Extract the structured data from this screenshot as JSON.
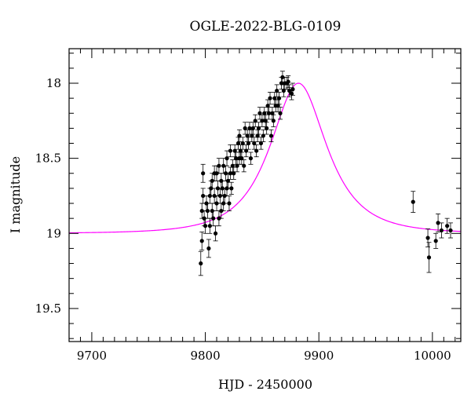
{
  "chart_data": {
    "type": "scatter",
    "title": "OGLE-2022-BLG-0109",
    "xlabel": "HJD - 2450000",
    "ylabel": "I magnitude",
    "xlim": [
      9680,
      10025
    ],
    "ylim": [
      19.72,
      17.77
    ],
    "y_inverted": true,
    "grid": false,
    "x_ticks": [
      9700,
      9800,
      9900,
      10000
    ],
    "y_ticks": [
      18,
      18.5,
      19,
      19.5
    ],
    "x_tick_labels": [
      "9700",
      "9800",
      "9900",
      "10000"
    ],
    "y_tick_labels": [
      "18",
      "18.5",
      "19",
      "19.5"
    ],
    "colors": {
      "data": "#000000",
      "model": "#ff00ff",
      "frame": "#000000"
    },
    "series": [
      {
        "kind": "points_with_errorbars",
        "x": [
          9796,
          9797,
          9797,
          9798,
          9798,
          9799,
          9800,
          9801,
          9802,
          9803,
          9804,
          9804,
          9805,
          9806,
          9806,
          9807,
          9808,
          9808,
          9809,
          9810,
          9810,
          9811,
          9812,
          9812,
          9813,
          9814,
          9814,
          9815,
          9816,
          9816,
          9817,
          9818,
          9819,
          9819,
          9820,
          9821,
          9822,
          9822,
          9823,
          9824,
          9825,
          9826,
          9827,
          9828,
          9829,
          9830,
          9830,
          9831,
          9832,
          9833,
          9834,
          9835,
          9836,
          9837,
          9838,
          9839,
          9840,
          9841,
          9842,
          9843,
          9844,
          9845,
          9846,
          9847,
          9848,
          9849,
          9850,
          9851,
          9852,
          9853,
          9854,
          9855,
          9856,
          9857,
          9858,
          9859,
          9860,
          9861,
          9862,
          9863,
          9864,
          9865,
          9866,
          9867,
          9868,
          9869,
          9870,
          9872,
          9873,
          9874,
          9876,
          9877,
          9983,
          9996,
          9997,
          10003,
          10005,
          10008,
          10013,
          10016
        ],
        "y": [
          19.2,
          19.05,
          18.85,
          18.75,
          18.6,
          18.9,
          18.95,
          18.8,
          18.85,
          19.1,
          18.75,
          18.95,
          18.7,
          18.85,
          18.65,
          18.9,
          18.6,
          18.75,
          19.0,
          18.8,
          18.6,
          18.7,
          18.9,
          18.55,
          18.75,
          18.65,
          18.85,
          18.7,
          18.55,
          18.8,
          18.75,
          18.6,
          18.7,
          18.5,
          18.65,
          18.8,
          18.6,
          18.45,
          18.7,
          18.55,
          18.6,
          18.45,
          18.5,
          18.55,
          18.4,
          18.5,
          18.35,
          18.45,
          18.5,
          18.4,
          18.55,
          18.3,
          18.45,
          18.35,
          18.4,
          18.3,
          18.5,
          18.35,
          18.3,
          18.4,
          18.25,
          18.45,
          18.35,
          18.3,
          18.2,
          18.4,
          18.25,
          18.35,
          18.2,
          18.25,
          18.3,
          18.15,
          18.2,
          18.1,
          18.35,
          18.2,
          18.25,
          18.1,
          18.15,
          18.05,
          18.15,
          18.1,
          18.2,
          18.0,
          17.96,
          18.05,
          18.0,
          18.0,
          17.99,
          18.05,
          18.07,
          18.04,
          18.79,
          19.03,
          19.16,
          19.05,
          18.93,
          18.98,
          18.95,
          18.98
        ],
        "yerr": [
          0.08,
          0.06,
          0.05,
          0.05,
          0.06,
          0.05,
          0.05,
          0.05,
          0.05,
          0.06,
          0.05,
          0.05,
          0.05,
          0.05,
          0.05,
          0.05,
          0.05,
          0.05,
          0.05,
          0.05,
          0.05,
          0.05,
          0.05,
          0.05,
          0.05,
          0.05,
          0.05,
          0.05,
          0.05,
          0.05,
          0.05,
          0.05,
          0.05,
          0.05,
          0.05,
          0.05,
          0.04,
          0.04,
          0.04,
          0.04,
          0.04,
          0.04,
          0.04,
          0.04,
          0.04,
          0.04,
          0.04,
          0.04,
          0.04,
          0.04,
          0.04,
          0.04,
          0.04,
          0.04,
          0.04,
          0.04,
          0.04,
          0.04,
          0.04,
          0.04,
          0.04,
          0.04,
          0.04,
          0.04,
          0.04,
          0.04,
          0.04,
          0.04,
          0.04,
          0.04,
          0.04,
          0.04,
          0.04,
          0.04,
          0.04,
          0.04,
          0.04,
          0.04,
          0.04,
          0.04,
          0.04,
          0.04,
          0.04,
          0.04,
          0.04,
          0.04,
          0.04,
          0.04,
          0.04,
          0.04,
          0.04,
          0.04,
          0.07,
          0.06,
          0.1,
          0.05,
          0.06,
          0.05,
          0.05,
          0.05
        ]
      },
      {
        "kind": "model_curve",
        "t0": 9882,
        "tE": 40,
        "peak_mag": 18.0,
        "baseline_mag": 19.0
      }
    ]
  }
}
